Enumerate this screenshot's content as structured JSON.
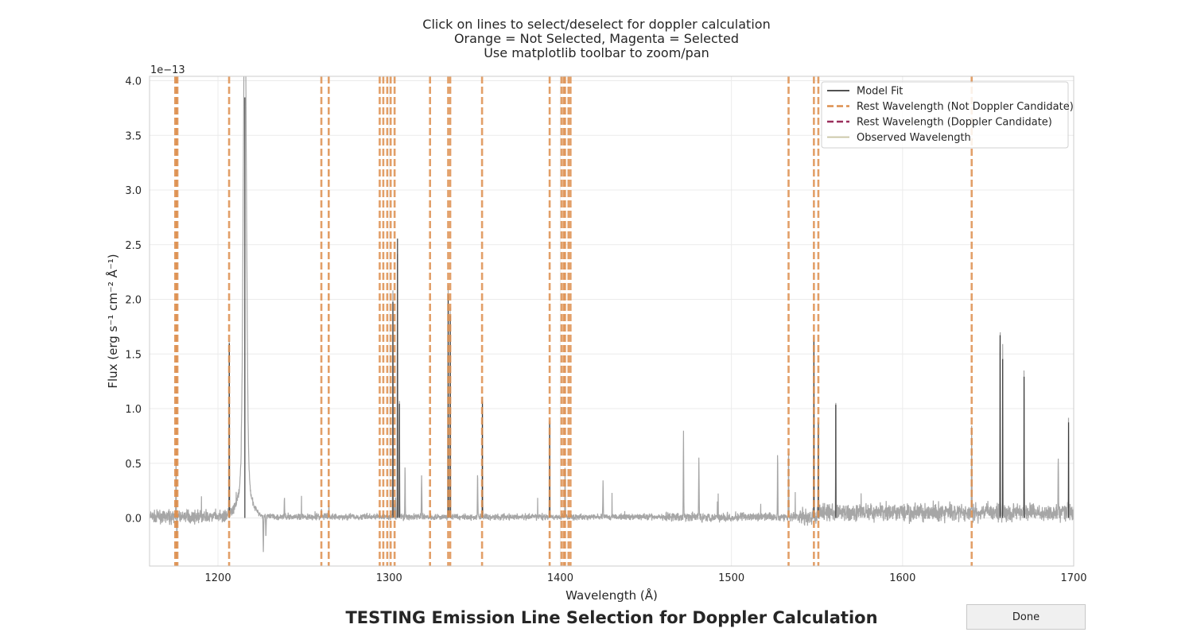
{
  "instructions": [
    "Click on lines to select/deselect for doppler calculation",
    "Orange = Not Selected, Magenta = Selected",
    "Use matplotlib toolbar to zoom/pan"
  ],
  "bottom_title": "TESTING Emission Line Selection for Doppler Calculation",
  "done_label": "Done",
  "colors": {
    "spectrum": "#a6a6a6",
    "model": "#3a3a3a",
    "not_candidate": "#dd8f4e",
    "candidate": "#9b2f5c",
    "observed": "#c7c2a0",
    "grid": "#ebebeb",
    "frame": "#cccccc"
  },
  "chart_data": {
    "type": "line",
    "xlabel": "Wavelength (Å)",
    "ylabel": "Flux (erg s⁻¹ cm⁻² Å⁻¹)",
    "offset_text": "1e−13",
    "xlim": [
      1160,
      1700
    ],
    "ylim": [
      -0.44,
      4.04
    ],
    "y_scale_factor": 1e-13,
    "xticks": [
      1200,
      1300,
      1400,
      1500,
      1600,
      1700
    ],
    "yticks": [
      0.0,
      0.5,
      1.0,
      1.5,
      2.0,
      2.5,
      3.0,
      3.5,
      4.0
    ],
    "grid": true,
    "legend_location": "top-right",
    "legend": [
      {
        "label": "Model Fit",
        "style": "solid",
        "color_key": "model"
      },
      {
        "label": "Rest Wavelength (Not Doppler Candidate)",
        "style": "dashed",
        "color_key": "not_candidate"
      },
      {
        "label": "Rest Wavelength (Doppler Candidate)",
        "style": "dashed",
        "color_key": "candidate"
      },
      {
        "label": "Observed Wavelength",
        "style": "solid",
        "color_key": "observed"
      }
    ],
    "rest_wavelengths": [
      1175.0,
      1175.7,
      1176.3,
      1206.5,
      1260.4,
      1264.7,
      1294.5,
      1296.6,
      1298.9,
      1300.9,
      1303.2,
      1323.9,
      1334.5,
      1335.7,
      1354.3,
      1393.8,
      1400.7,
      1402.0,
      1402.8,
      1404.8,
      1406.0,
      1533.4,
      1548.2,
      1550.8,
      1640.4
    ],
    "emission_peaks": [
      {
        "x": 1175.5,
        "y": 0.58
      },
      {
        "x": 1206.6,
        "y": 1.68
      },
      {
        "x": 1215.7,
        "y": 4.05
      },
      {
        "x": 1238.8,
        "y": 0.18
      },
      {
        "x": 1260.5,
        "y": 0.06
      },
      {
        "x": 1264.8,
        "y": 0.09
      },
      {
        "x": 1302.2,
        "y": 2.08
      },
      {
        "x": 1304.9,
        "y": 2.69
      },
      {
        "x": 1306.0,
        "y": 1.1
      },
      {
        "x": 1309.3,
        "y": 0.47
      },
      {
        "x": 1319.0,
        "y": 0.4
      },
      {
        "x": 1334.5,
        "y": 2.15
      },
      {
        "x": 1335.7,
        "y": 1.95
      },
      {
        "x": 1351.7,
        "y": 0.4
      },
      {
        "x": 1354.5,
        "y": 1.12
      },
      {
        "x": 1393.8,
        "y": 0.91
      },
      {
        "x": 1402.8,
        "y": 0.45
      },
      {
        "x": 1425.0,
        "y": 0.32
      },
      {
        "x": 1472.0,
        "y": 0.78
      },
      {
        "x": 1481.0,
        "y": 0.55
      },
      {
        "x": 1527.0,
        "y": 0.58
      },
      {
        "x": 1533.4,
        "y": 0.62
      },
      {
        "x": 1548.2,
        "y": 1.7
      },
      {
        "x": 1550.8,
        "y": 0.92
      },
      {
        "x": 1561.0,
        "y": 1.09
      },
      {
        "x": 1640.4,
        "y": 0.58
      },
      {
        "x": 1657.0,
        "y": 1.76
      },
      {
        "x": 1658.5,
        "y": 1.53
      },
      {
        "x": 1671.0,
        "y": 1.36
      },
      {
        "x": 1691.0,
        "y": 0.56
      },
      {
        "x": 1697.0,
        "y": 0.92
      }
    ],
    "absorption_features": [
      {
        "x": 1176.0,
        "y": -0.2
      },
      {
        "x": 1226.5,
        "y": -0.34
      },
      {
        "x": 1228.0,
        "y": -0.2
      }
    ]
  }
}
